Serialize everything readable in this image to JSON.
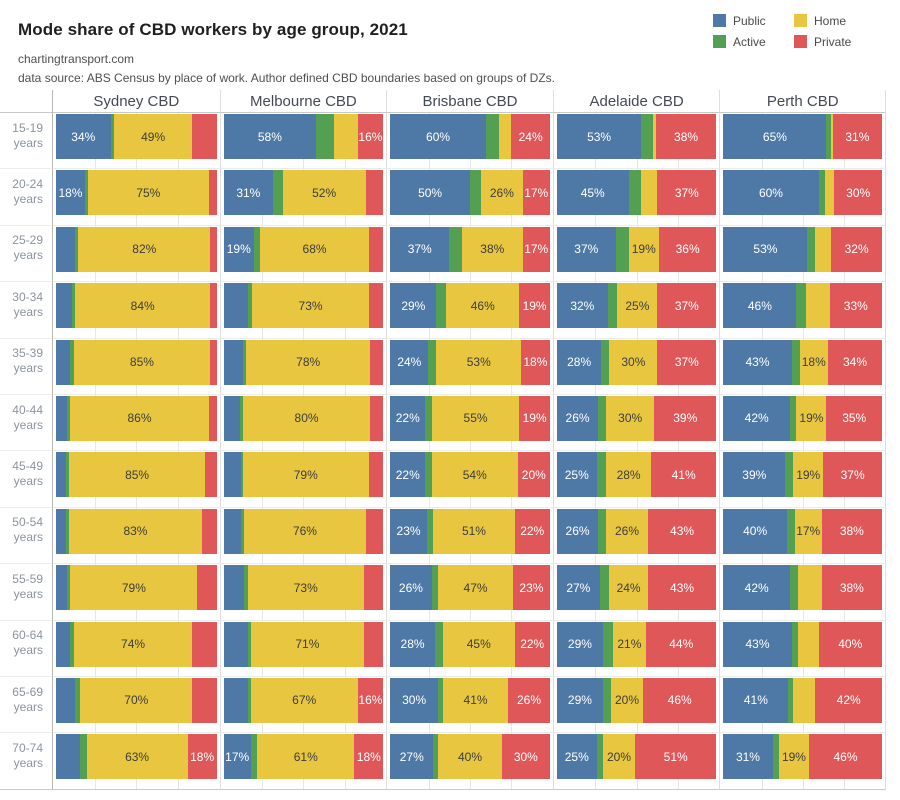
{
  "header": {
    "title": "Mode share of CBD workers by age group, 2021",
    "site": "chartingtransport.com",
    "source_note": "data source: ABS Census by place of work. Author defined CBD boundaries based on groups of DZs."
  },
  "chart_data": {
    "type": "bar",
    "variant": "horizontal-100pct-stacked-small-multiples",
    "title": "Mode share of CBD workers by age group, 2021",
    "unit": "percent of workers",
    "legend_position": "top-right",
    "gridlines_percent": [
      25,
      50,
      75
    ],
    "label_threshold_percent": 16,
    "value_order": [
      "public",
      "active",
      "home",
      "private"
    ],
    "modes": [
      {
        "key": "public",
        "label": "Public",
        "color": "#4e79a7",
        "text_color": "#ffffff"
      },
      {
        "key": "active",
        "label": "Active",
        "color": "#54a053",
        "text_color": "#ffffff"
      },
      {
        "key": "home",
        "label": "Home",
        "color": "#e8c63f",
        "text_color": "#3d3d3d"
      },
      {
        "key": "private",
        "label": "Private",
        "color": "#e05759",
        "text_color": "#ffffff"
      }
    ],
    "age_groups": [
      "15-19",
      "20-24",
      "25-29",
      "30-34",
      "35-39",
      "40-44",
      "45-49",
      "50-54",
      "55-59",
      "60-64",
      "65-69",
      "70-74"
    ],
    "age_group_suffix": "years",
    "cities": [
      {
        "name": "Sydney CBD",
        "values": [
          [
            34,
            2,
            49,
            15
          ],
          [
            18,
            2,
            75,
            5
          ],
          [
            12,
            2,
            82,
            4
          ],
          [
            10,
            2,
            84,
            4
          ],
          [
            9,
            2,
            85,
            4
          ],
          [
            7,
            2,
            86,
            5
          ],
          [
            6,
            2,
            85,
            7
          ],
          [
            6,
            2,
            83,
            9
          ],
          [
            7,
            2,
            79,
            12
          ],
          [
            9,
            2,
            74,
            15
          ],
          [
            12,
            3,
            70,
            15
          ],
          [
            15,
            4,
            63,
            18
          ]
        ]
      },
      {
        "name": "Melbourne CBD",
        "values": [
          [
            58,
            11,
            15,
            16
          ],
          [
            31,
            6,
            52,
            11
          ],
          [
            19,
            4,
            68,
            9
          ],
          [
            15,
            3,
            73,
            9
          ],
          [
            12,
            2,
            78,
            8
          ],
          [
            10,
            2,
            80,
            8
          ],
          [
            11,
            1,
            79,
            9
          ],
          [
            11,
            2,
            76,
            11
          ],
          [
            13,
            2,
            73,
            12
          ],
          [
            15,
            2,
            71,
            12
          ],
          [
            15,
            2,
            67,
            16
          ],
          [
            17,
            4,
            61,
            18
          ]
        ]
      },
      {
        "name": "Brisbane CBD",
        "values": [
          [
            60,
            8,
            8,
            24
          ],
          [
            50,
            7,
            26,
            17
          ],
          [
            37,
            8,
            38,
            17
          ],
          [
            29,
            6,
            46,
            19
          ],
          [
            24,
            5,
            53,
            18
          ],
          [
            22,
            4,
            55,
            19
          ],
          [
            22,
            4,
            54,
            20
          ],
          [
            23,
            4,
            51,
            22
          ],
          [
            26,
            4,
            47,
            23
          ],
          [
            28,
            5,
            45,
            22
          ],
          [
            30,
            3,
            41,
            26
          ],
          [
            27,
            3,
            40,
            30
          ]
        ]
      },
      {
        "name": "Adelaide CBD",
        "values": [
          [
            53,
            7,
            2,
            38
          ],
          [
            45,
            8,
            10,
            37
          ],
          [
            37,
            8,
            19,
            36
          ],
          [
            32,
            6,
            25,
            37
          ],
          [
            28,
            5,
            30,
            37
          ],
          [
            26,
            5,
            30,
            39
          ],
          [
            25,
            6,
            28,
            41
          ],
          [
            26,
            5,
            26,
            43
          ],
          [
            27,
            6,
            24,
            43
          ],
          [
            29,
            6,
            21,
            44
          ],
          [
            29,
            5,
            20,
            46
          ],
          [
            25,
            4,
            20,
            51
          ]
        ]
      },
      {
        "name": "Perth CBD",
        "values": [
          [
            65,
            3,
            1,
            31
          ],
          [
            60,
            4,
            6,
            30
          ],
          [
            53,
            5,
            10,
            32
          ],
          [
            46,
            6,
            15,
            33
          ],
          [
            43,
            5,
            18,
            34
          ],
          [
            42,
            4,
            19,
            35
          ],
          [
            39,
            5,
            19,
            37
          ],
          [
            40,
            5,
            17,
            38
          ],
          [
            42,
            5,
            15,
            38
          ],
          [
            43,
            4,
            13,
            40
          ],
          [
            41,
            3,
            14,
            42
          ],
          [
            31,
            4,
            19,
            46
          ]
        ]
      }
    ]
  }
}
